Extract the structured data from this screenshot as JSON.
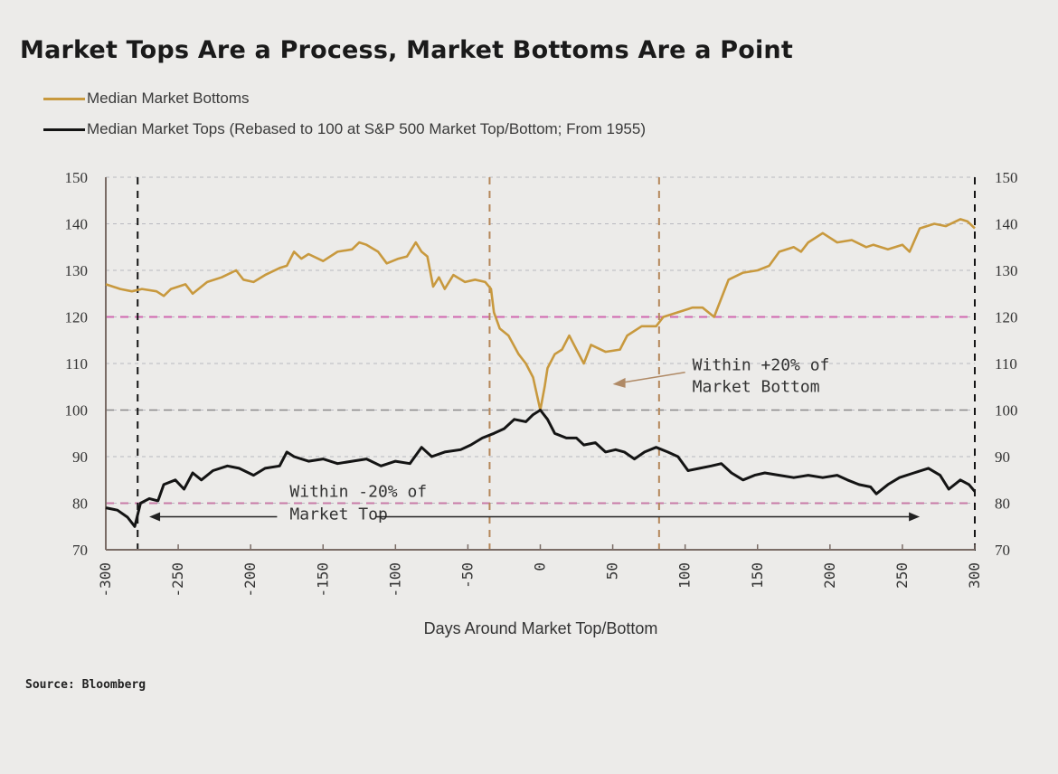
{
  "chart_data": {
    "type": "line",
    "title": "Market Tops Are a Process, Market Bottoms Are a Point",
    "xlabel": "Days Around Market Top/Bottom",
    "ylabel": "",
    "xlim": [
      -300,
      300
    ],
    "ylim": [
      70,
      150
    ],
    "x_ticks": [
      -300,
      -250,
      -200,
      -150,
      -100,
      -50,
      0,
      50,
      100,
      150,
      200,
      250,
      300
    ],
    "y_ticks": [
      70,
      80,
      90,
      100,
      110,
      120,
      130,
      140,
      150
    ],
    "y_axes": [
      "left",
      "right"
    ],
    "grid": true,
    "legend_position": "top-left",
    "series": [
      {
        "name": "Median Market Bottoms",
        "color": "#c8993e",
        "points": [
          [
            -300,
            127
          ],
          [
            -290,
            126
          ],
          [
            -282,
            125.5
          ],
          [
            -275,
            126
          ],
          [
            -265,
            125.5
          ],
          [
            -260,
            124.5
          ],
          [
            -255,
            126
          ],
          [
            -245,
            127
          ],
          [
            -240,
            125
          ],
          [
            -230,
            127.5
          ],
          [
            -220,
            128.5
          ],
          [
            -210,
            130
          ],
          [
            -205,
            128
          ],
          [
            -198,
            127.5
          ],
          [
            -190,
            129
          ],
          [
            -180,
            130.5
          ],
          [
            -175,
            131
          ],
          [
            -170,
            134
          ],
          [
            -165,
            132.5
          ],
          [
            -160,
            133.5
          ],
          [
            -150,
            132
          ],
          [
            -140,
            134
          ],
          [
            -130,
            134.5
          ],
          [
            -125,
            136
          ],
          [
            -120,
            135.5
          ],
          [
            -112,
            134
          ],
          [
            -106,
            131.5
          ],
          [
            -98,
            132.5
          ],
          [
            -92,
            133
          ],
          [
            -86,
            136
          ],
          [
            -82,
            134
          ],
          [
            -78,
            133
          ],
          [
            -74,
            126.5
          ],
          [
            -70,
            128.5
          ],
          [
            -66,
            126
          ],
          [
            -60,
            129
          ],
          [
            -52,
            127.5
          ],
          [
            -45,
            128
          ],
          [
            -38,
            127.5
          ],
          [
            -34,
            126
          ],
          [
            -32,
            121
          ],
          [
            -28,
            117.5
          ],
          [
            -22,
            116
          ],
          [
            -15,
            112
          ],
          [
            -10,
            110
          ],
          [
            -5,
            107
          ],
          [
            0,
            100
          ],
          [
            3,
            105
          ],
          [
            5,
            109
          ],
          [
            10,
            112
          ],
          [
            15,
            113
          ],
          [
            20,
            116
          ],
          [
            25,
            113
          ],
          [
            30,
            110
          ],
          [
            35,
            114
          ],
          [
            45,
            112.5
          ],
          [
            55,
            113
          ],
          [
            60,
            116
          ],
          [
            70,
            118
          ],
          [
            80,
            118
          ],
          [
            85,
            120
          ],
          [
            95,
            121
          ],
          [
            105,
            122
          ],
          [
            112,
            122
          ],
          [
            120,
            120
          ],
          [
            130,
            128
          ],
          [
            140,
            129.5
          ],
          [
            150,
            130
          ],
          [
            158,
            131
          ],
          [
            165,
            134
          ],
          [
            175,
            135
          ],
          [
            180,
            134
          ],
          [
            185,
            136
          ],
          [
            195,
            138
          ],
          [
            205,
            136
          ],
          [
            215,
            136.5
          ],
          [
            225,
            135
          ],
          [
            230,
            135.5
          ],
          [
            240,
            134.5
          ],
          [
            250,
            135.5
          ],
          [
            255,
            134
          ],
          [
            262,
            139
          ],
          [
            272,
            140
          ],
          [
            280,
            139.5
          ],
          [
            290,
            141
          ],
          [
            295,
            140.5
          ],
          [
            300,
            139
          ]
        ]
      },
      {
        "name": "Median Market Tops (Rebased to 100 at S&P 500 Market Top/Bottom; From 1955)",
        "color": "#141414",
        "points": [
          [
            -300,
            79
          ],
          [
            -292,
            78.5
          ],
          [
            -285,
            77
          ],
          [
            -280,
            75
          ],
          [
            -276,
            80
          ],
          [
            -270,
            81
          ],
          [
            -264,
            80.5
          ],
          [
            -260,
            84
          ],
          [
            -252,
            85
          ],
          [
            -246,
            83
          ],
          [
            -240,
            86.5
          ],
          [
            -234,
            85
          ],
          [
            -226,
            87
          ],
          [
            -216,
            88
          ],
          [
            -208,
            87.5
          ],
          [
            -198,
            86
          ],
          [
            -190,
            87.5
          ],
          [
            -180,
            88
          ],
          [
            -175,
            91
          ],
          [
            -170,
            90
          ],
          [
            -160,
            89
          ],
          [
            -150,
            89.5
          ],
          [
            -140,
            88.5
          ],
          [
            -130,
            89
          ],
          [
            -120,
            89.5
          ],
          [
            -110,
            88
          ],
          [
            -100,
            89
          ],
          [
            -90,
            88.5
          ],
          [
            -82,
            92
          ],
          [
            -75,
            90
          ],
          [
            -66,
            91
          ],
          [
            -55,
            91.5
          ],
          [
            -48,
            92.5
          ],
          [
            -40,
            94
          ],
          [
            -32,
            95
          ],
          [
            -25,
            96
          ],
          [
            -18,
            98
          ],
          [
            -10,
            97.5
          ],
          [
            -5,
            99
          ],
          [
            0,
            100
          ],
          [
            5,
            98
          ],
          [
            10,
            95
          ],
          [
            18,
            94
          ],
          [
            25,
            94
          ],
          [
            30,
            92.5
          ],
          [
            38,
            93
          ],
          [
            45,
            91
          ],
          [
            52,
            91.5
          ],
          [
            58,
            91
          ],
          [
            65,
            89.5
          ],
          [
            72,
            91
          ],
          [
            80,
            92
          ],
          [
            88,
            91
          ],
          [
            95,
            90
          ],
          [
            102,
            87
          ],
          [
            110,
            87.5
          ],
          [
            118,
            88
          ],
          [
            125,
            88.5
          ],
          [
            132,
            86.5
          ],
          [
            140,
            85
          ],
          [
            148,
            86
          ],
          [
            155,
            86.5
          ],
          [
            165,
            86
          ],
          [
            175,
            85.5
          ],
          [
            185,
            86
          ],
          [
            195,
            85.5
          ],
          [
            205,
            86
          ],
          [
            212,
            85
          ],
          [
            220,
            84
          ],
          [
            228,
            83.5
          ],
          [
            232,
            82
          ],
          [
            240,
            84
          ],
          [
            248,
            85.5
          ],
          [
            258,
            86.5
          ],
          [
            268,
            87.5
          ],
          [
            276,
            86
          ],
          [
            282,
            83
          ],
          [
            290,
            85
          ],
          [
            296,
            84
          ],
          [
            300,
            82.5
          ]
        ]
      }
    ],
    "reference_lines": [
      {
        "type": "horizontal",
        "y": 100,
        "color": "#8a8a8a",
        "style": "dashed"
      },
      {
        "type": "horizontal",
        "y": 120,
        "color": "#d067b0",
        "style": "dashed"
      },
      {
        "type": "horizontal",
        "y": 80,
        "color": "#c87ba8",
        "style": "dashed"
      },
      {
        "type": "vertical",
        "x": -278,
        "color": "#141414",
        "style": "dashed"
      },
      {
        "type": "vertical",
        "x": -35,
        "color": "#b5875a",
        "style": "dashed"
      },
      {
        "type": "vertical",
        "x": 82,
        "color": "#b5875a",
        "style": "dashed"
      },
      {
        "type": "vertical",
        "x": 300,
        "color": "#141414",
        "style": "dashed"
      }
    ],
    "annotations": [
      {
        "text": [
          "Within +20% of",
          "Market Bottom"
        ],
        "x": 105,
        "y": 108.5,
        "arrow_to": [
          50,
          107.5
        ],
        "color": "#333333"
      },
      {
        "text": [
          "Within -20% of",
          "Market Top"
        ],
        "x": -173,
        "y": 80,
        "arrow_left_to": -270,
        "arrow_right_to": 262,
        "color": "#333333"
      }
    ]
  },
  "legend": {
    "items": [
      {
        "label": "Median Market Bottoms",
        "color": "#c8993e"
      },
      {
        "label": "Median Market Tops (Rebased to 100 at S&P 500 Market Top/Bottom; From 1955)",
        "color": "#141414"
      }
    ]
  },
  "source": "Source: Bloomberg"
}
